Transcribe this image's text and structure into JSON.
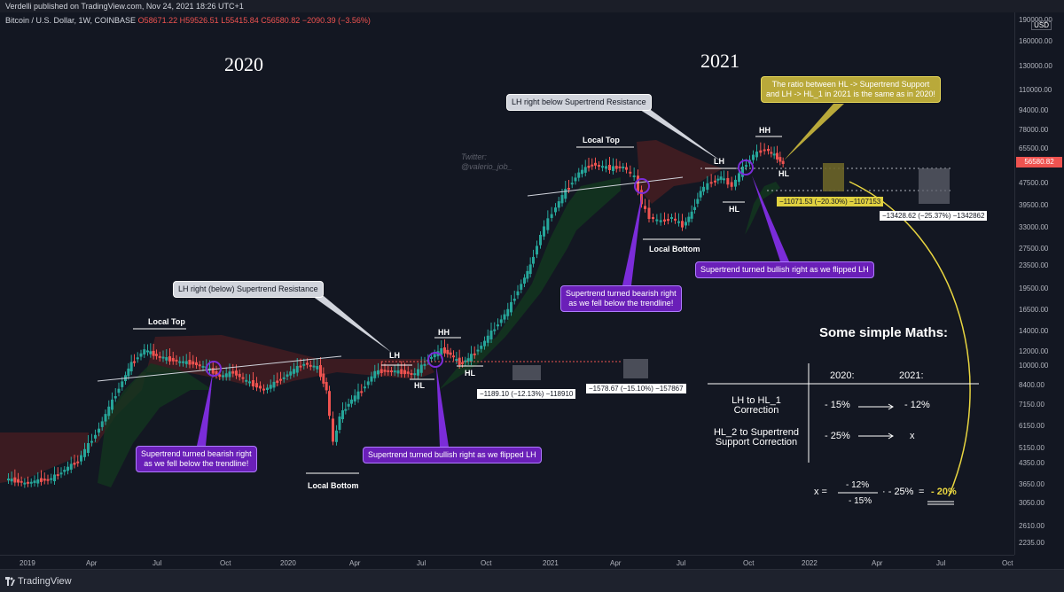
{
  "header": {
    "publisher": "Verdelli published on TradingView.com, Nov 24, 2021 18:26 UTC+1"
  },
  "legend": {
    "symbol": "Bitcoin / U.S. Dollar, 1W, COINBASE",
    "o": "O58671.22",
    "h": "H59526.51",
    "l": "L55415.84",
    "c": "C56580.82",
    "chg": "−2090.39 (−3.56%)"
  },
  "price_axis": {
    "currency": "USD",
    "labels": [
      "190000.00",
      "160000.00",
      "130000.00",
      "110000.00",
      "94000.00",
      "78000.00",
      "65500.00",
      "47500.00",
      "39500.00",
      "33000.00",
      "27500.00",
      "23500.00",
      "19500.00",
      "16500.00",
      "14000.00",
      "12000.00",
      "10000.00",
      "8400.00",
      "7150.00",
      "6150.00",
      "5150.00",
      "4350.00",
      "3650.00",
      "3050.00",
      "2610.00",
      "2235.00"
    ],
    "last_price": "56580.82"
  },
  "time_axis": {
    "labels": [
      "2019",
      "Apr",
      "Jul",
      "Oct",
      "2020",
      "Apr",
      "Jul",
      "Oct",
      "2021",
      "Apr",
      "Jul",
      "Oct",
      "2022",
      "Apr",
      "Jul",
      "Oct"
    ]
  },
  "annotations": {
    "year_2020": "2020",
    "year_2021": "2021",
    "twitter": "Twitter:",
    "twitter_handle": "@valerio_job_",
    "lh_2020_callout": "LH right (below) Supertrend Resistance",
    "lh_2021_callout": "LH right below Supertrend Resistance",
    "ratio_callout_1": "The ratio between HL -> Supertrend Support",
    "ratio_callout_2": "and LH -> HL_1 in 2021 is the same as in 2020!",
    "bearish_2020_1": "Supertrend turned bearish right",
    "bearish_2020_2": "as we fell below the trendline!",
    "bullish_2020": "Supertrend turned bullish right as we flipped LH",
    "bearish_2021_1": "Supertrend turned bearish right",
    "bearish_2021_2": "as we fell below the trendline!",
    "bullish_2021": "Supertrend turned bullish right as we flipped LH",
    "local_top": "Local Top",
    "local_top_2021": "Local Top",
    "local_bottom": "Local Bottom",
    "local_bottom_2021": "Local Bottom",
    "lh": "LH",
    "hh": "HH",
    "hl": "HL",
    "lh_2021": "LH",
    "hh_2021": "HH",
    "hl_2021": "HL",
    "hl_2021_b": "HL",
    "hl_2020_b": "HL",
    "measure_1": "−1189.10 (−12.13%) −118910",
    "measure_2": "−1578.67 (−15.10%) −157867",
    "measure_3": "−11071.53 (−20.30%) −1107153",
    "measure_4": "−13428.62 (−25.37%) −1342862"
  },
  "maths": {
    "title": "Some simple Maths:",
    "col_2020": "2020:",
    "col_2021": "2021:",
    "row1_label_1": "LH to HL_1",
    "row1_label_2": "Correction",
    "row1_2020": "- 15%",
    "row1_2021": "- 12%",
    "row2_label_1": "HL_2 to Supertrend",
    "row2_label_2": "Support Correction",
    "row2_2020": "- 25%",
    "row2_2021": "x",
    "formula_x": "x =",
    "formula_num": "- 12%",
    "formula_den": "- 15%",
    "formula_mul": "·  - 25%",
    "formula_eq": "=",
    "formula_result": "- 20%"
  },
  "footer": {
    "brand": "TradingView"
  },
  "colors": {
    "bg": "#131722",
    "up": "#26a69a",
    "down": "#ef5350",
    "supertrend_red": "#7a2b2b",
    "supertrend_green": "#1e4a2c",
    "yellow": "#e8d540",
    "purple": "#7b2cd9"
  }
}
